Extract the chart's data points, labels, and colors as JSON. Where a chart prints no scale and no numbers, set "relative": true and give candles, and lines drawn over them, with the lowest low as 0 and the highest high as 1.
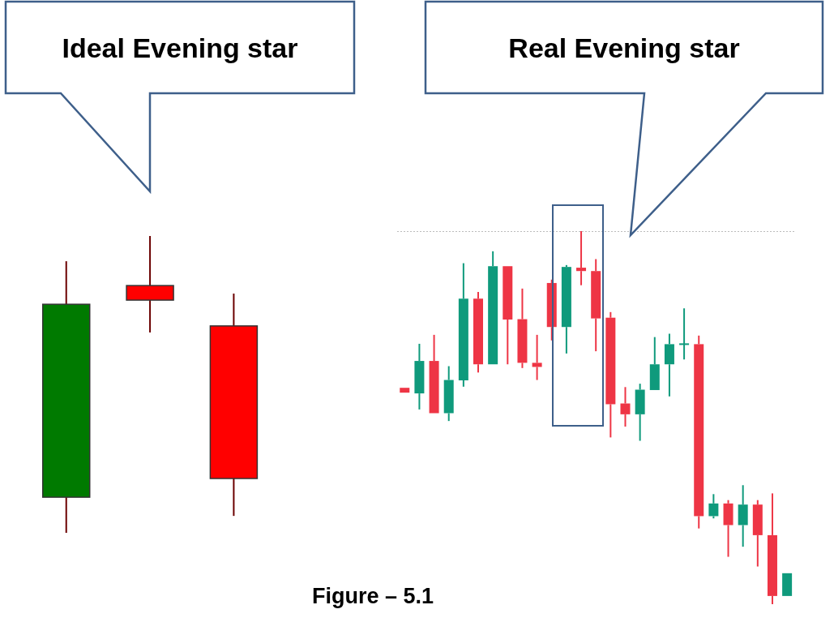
{
  "chart_data": [
    {
      "type": "candlestick",
      "relative": true,
      "annotations": [
        "Ideal Evening star"
      ],
      "categories": [
        null,
        null,
        null
      ],
      "ohlc": [
        [
          0.12,
          0.915,
          0,
          0.77
        ],
        [
          0.833,
          1,
          0.675,
          0.784
        ],
        [
          0.697,
          0.806,
          0.057,
          0.183
        ]
      ],
      "colors": [
        "#007a00",
        "#ff0000",
        "#ff0000"
      ]
    },
    {
      "type": "candlestick",
      "relative": true,
      "annotations": [
        "Real Evening star",
        "Figure – 5.1"
      ],
      "categories": [
        null,
        null,
        null,
        null,
        null,
        null,
        null,
        null,
        null,
        null,
        null,
        null,
        null,
        null,
        null,
        null,
        null,
        null,
        null,
        null,
        null,
        null,
        null,
        null,
        null,
        null,
        null
      ],
      "ohlc": [
        [
          0.58,
          0.58,
          0.567,
          0.567
        ],
        [
          0.565,
          0.698,
          0.522,
          0.652
        ],
        [
          0.652,
          0.722,
          0.512,
          0.512
        ],
        [
          0.512,
          0.638,
          0.491,
          0.601
        ],
        [
          0.6,
          0.914,
          0.583,
          0.819
        ],
        [
          0.819,
          0.837,
          0.621,
          0.643
        ],
        [
          0.643,
          0.946,
          0.643,
          0.906
        ],
        [
          0.906,
          0.906,
          0.643,
          0.763
        ],
        [
          0.764,
          0.846,
          0.633,
          0.647
        ],
        [
          0.647,
          0.722,
          0.601,
          0.636
        ],
        [
          0.861,
          0.87,
          0.707,
          0.743
        ],
        [
          0.743,
          0.909,
          0.672,
          0.904
        ],
        [
          0.902,
          1,
          0.855,
          0.893
        ],
        [
          0.893,
          0.925,
          0.678,
          0.766
        ],
        [
          0.768,
          0.783,
          0.447,
          0.536
        ],
        [
          0.538,
          0.582,
          0.476,
          0.509
        ],
        [
          0.509,
          0.591,
          0.438,
          0.575
        ],
        [
          0.574,
          0.716,
          0.574,
          0.643
        ],
        [
          0.643,
          0.725,
          0.557,
          0.697
        ],
        [
          0.697,
          0.793,
          0.656,
          0.697
        ],
        [
          0.697,
          0.72,
          0.203,
          0.236
        ],
        [
          0.236,
          0.295,
          0.23,
          0.27
        ],
        [
          0.27,
          0.279,
          0.127,
          0.212
        ],
        [
          0.212,
          0.319,
          0.154,
          0.267
        ],
        [
          0.267,
          0.279,
          0.101,
          0.185
        ],
        [
          0.185,
          0.297,
          0,
          0.022
        ],
        [
          0.022,
          0.083,
          0.022,
          0.083
        ]
      ],
      "colors": [
        "#ee3545",
        "#0f9a7c",
        "#ee3545",
        "#0f9a7c",
        "#0f9a7c",
        "#ee3545",
        "#0f9a7c",
        "#ee3545",
        "#ee3545",
        "#ee3545",
        "#ee3545",
        "#0f9a7c",
        "#ee3545",
        "#ee3545",
        "#ee3545",
        "#ee3545",
        "#0f9a7c",
        "#0f9a7c",
        "#0f9a7c",
        "#0f9a7c",
        "#ee3545",
        "#0f9a7c",
        "#ee3545",
        "#0f9a7c",
        "#ee3545",
        "#ee3545",
        "#0f9a7c"
      ],
      "ref_lines": [
        {
          "axis": "y",
          "value": 1,
          "line_style": "dotted",
          "color": "#bbbbbb"
        }
      ]
    }
  ]
}
